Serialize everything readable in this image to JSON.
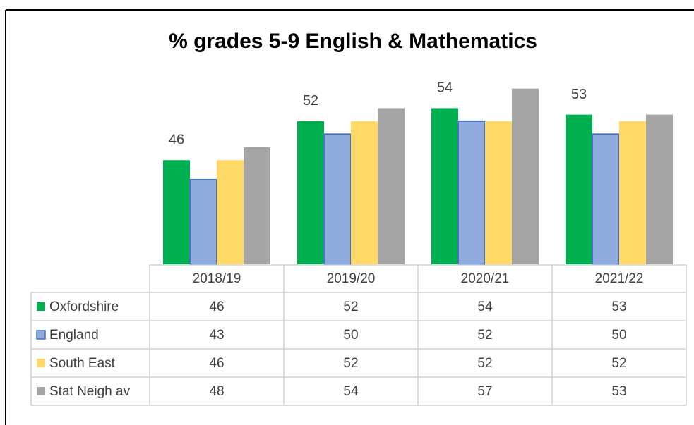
{
  "chart_data": {
    "type": "bar",
    "title": "% grades 5-9 English & Mathematics",
    "categories": [
      "2018/19",
      "2019/20",
      "2020/21",
      "2021/22"
    ],
    "series": [
      {
        "name": "Oxfordshire",
        "color": "#00b050",
        "values": [
          46,
          52,
          54,
          53
        ]
      },
      {
        "name": "England",
        "color": "#8faadc",
        "values": [
          43,
          50,
          52,
          50
        ]
      },
      {
        "name": "South East",
        "color": "#ffd966",
        "values": [
          46,
          52,
          52,
          52
        ]
      },
      {
        "name": "Stat Neigh av",
        "color": "#a5a5a5",
        "values": [
          48,
          54,
          57,
          53
        ]
      }
    ],
    "ylim": [
      30,
      60
    ]
  }
}
